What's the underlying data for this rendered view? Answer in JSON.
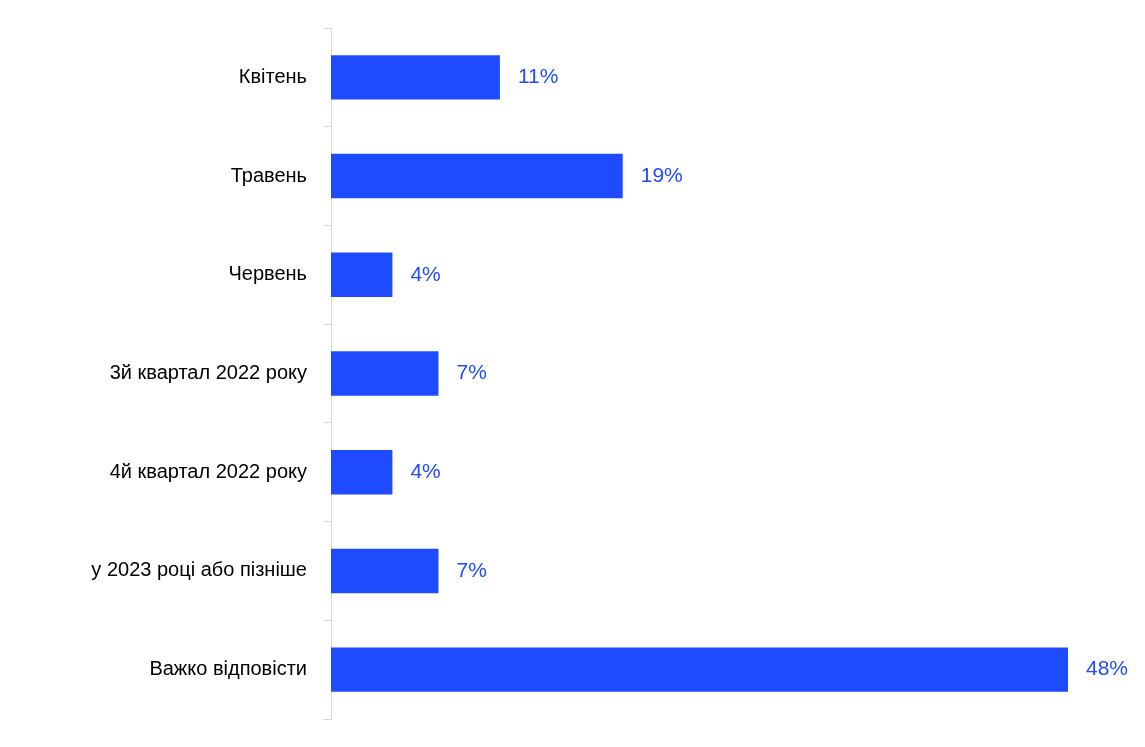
{
  "chart_data": {
    "type": "bar",
    "orientation": "horizontal",
    "tick_labels": "y",
    "categories": [
      "Квітень",
      "Травень",
      "Червень",
      "3й квартал 2022 року",
      "4й квартал 2022 року",
      "у 2023 році або пізніше",
      "Важко відповісти"
    ],
    "values": [
      11,
      19,
      4,
      7,
      4,
      7,
      48
    ],
    "value_labels": [
      "11%",
      "19%",
      "4%",
      "7%",
      "4%",
      "7%",
      "48%"
    ],
    "color": "#1f4bff"
  }
}
